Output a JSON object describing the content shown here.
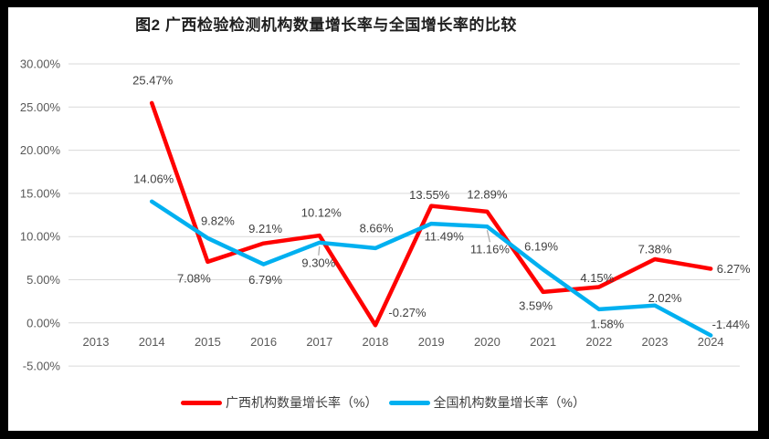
{
  "chart_data": {
    "type": "line",
    "title": "图2 广西检验检测机构数量增长率与全国增长率的比较",
    "categories": [
      "2013",
      "2014",
      "2015",
      "2016",
      "2017",
      "2018",
      "2019",
      "2020",
      "2021",
      "2022",
      "2023",
      "2024"
    ],
    "ylim": [
      -5,
      30
    ],
    "grid": true,
    "legend_position": "bottom",
    "y_ticks": [
      {
        "value": 30,
        "label": "30.00%"
      },
      {
        "value": 25,
        "label": "25.00%"
      },
      {
        "value": 20,
        "label": "20.00%"
      },
      {
        "value": 15,
        "label": "15.00%"
      },
      {
        "value": 10,
        "label": "10.00%"
      },
      {
        "value": 5,
        "label": "5.00%"
      },
      {
        "value": 0,
        "label": "0.00%"
      },
      {
        "value": -5,
        "label": "-5.00%"
      }
    ],
    "series": [
      {
        "name": "广西机构数量增长率（%）",
        "color": "#FF0000",
        "points": [
          {
            "year": "2014",
            "value": 25.47,
            "label": "25.47%",
            "dx": 1,
            "dy": -25
          },
          {
            "year": "2015",
            "value": 7.08,
            "label": "7.08%",
            "dx": -15,
            "dy": 18
          },
          {
            "year": "2016",
            "value": 9.21,
            "label": "9.21%",
            "dx": 2,
            "dy": -16
          },
          {
            "year": "2017",
            "value": 10.12,
            "label": "10.12%",
            "dx": 2,
            "dy": -25
          },
          {
            "year": "2018",
            "value": -0.27,
            "label": "-0.27%",
            "dx": 35,
            "dy": -14
          },
          {
            "year": "2019",
            "value": 13.55,
            "label": "13.55%",
            "dx": -2,
            "dy": -12
          },
          {
            "year": "2020",
            "value": 12.89,
            "label": "12.89%",
            "dx": 0,
            "dy": -19
          },
          {
            "year": "2021",
            "value": 3.59,
            "label": "3.59%",
            "dx": -8,
            "dy": 15
          },
          {
            "year": "2022",
            "value": 4.15,
            "label": "4.15%",
            "dx": -2,
            "dy": -10
          },
          {
            "year": "2023",
            "value": 7.38,
            "label": "7.38%",
            "dx": 0,
            "dy": -11
          },
          {
            "year": "2024",
            "value": 6.27,
            "label": "6.27%",
            "dx": 25,
            "dy": 0
          }
        ]
      },
      {
        "name": "全国机构数量增长率（%）",
        "color": "#00B0F0",
        "points": [
          {
            "year": "2014",
            "value": 14.06,
            "label": "14.06%",
            "dx": 2,
            "dy": -25
          },
          {
            "year": "2015",
            "value": 9.82,
            "label": "9.82%",
            "dx": 11,
            "dy": -19
          },
          {
            "year": "2016",
            "value": 6.79,
            "label": "6.79%",
            "dx": 2,
            "dy": 17
          },
          {
            "year": "2017",
            "value": 9.3,
            "label": "9.30%",
            "dx": -1,
            "dy": 22,
            "leader": true
          },
          {
            "year": "2018",
            "value": 8.66,
            "label": "8.66%",
            "dx": 1,
            "dy": -22
          },
          {
            "year": "2019",
            "value": 11.49,
            "label": "11.49%",
            "dx": 14,
            "dy": 14
          },
          {
            "year": "2020",
            "value": 11.16,
            "label": "11.16%",
            "dx": 3,
            "dy": 25,
            "leader": true
          },
          {
            "year": "2021",
            "value": 6.19,
            "label": "6.19%",
            "dx": -2,
            "dy": -25
          },
          {
            "year": "2022",
            "value": 1.58,
            "label": "1.58%",
            "dx": 9,
            "dy": 16
          },
          {
            "year": "2023",
            "value": 2.02,
            "label": "2.02%",
            "dx": 11,
            "dy": -8
          },
          {
            "year": "2024",
            "value": -1.44,
            "label": "-1.44%",
            "dx": 22,
            "dy": -12
          }
        ]
      }
    ],
    "colors": {
      "grid": "#D9D9D9",
      "axis_text": "#595959",
      "data_label": "#404040",
      "leader": "#A6A6A6",
      "frame": "#000000",
      "background": "#FFFFFF"
    }
  }
}
